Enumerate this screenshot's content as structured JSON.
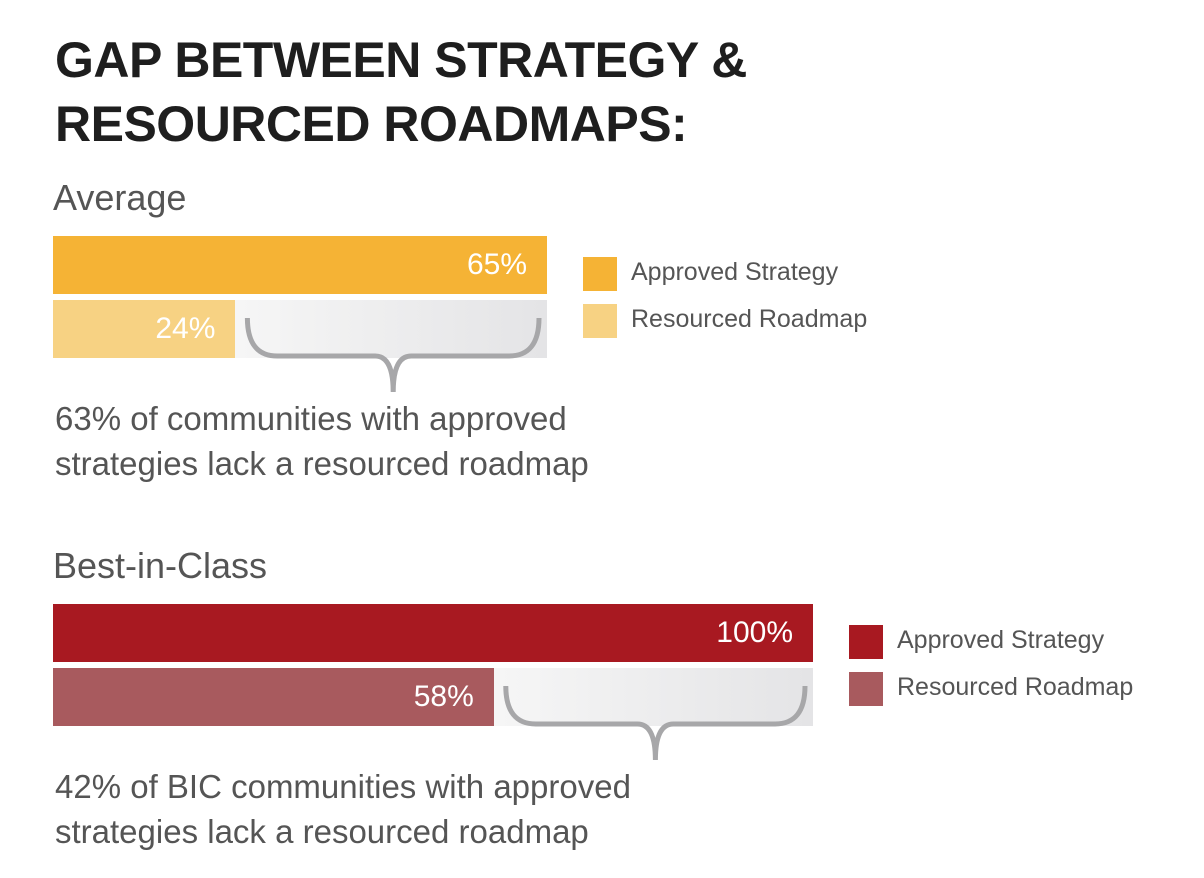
{
  "title": "GAP BETWEEN STRATEGY & RESOURCED ROADMAPS:",
  "chart_data": [
    {
      "type": "bar",
      "subtitle": "Average",
      "categories": [
        "Approved Strategy",
        "Resourced Roadmap"
      ],
      "values": [
        65,
        24
      ],
      "value_labels": [
        "65%",
        "24%"
      ],
      "colors": [
        "#f5b335",
        "#f7d283"
      ],
      "xlim": [
        0,
        100
      ],
      "annotation": "63% of communities with approved strategies lack a resourced roadmap"
    },
    {
      "type": "bar",
      "subtitle": "Best-in-Class",
      "categories": [
        "Approved Strategy",
        "Resourced Roadmap"
      ],
      "values": [
        100,
        58
      ],
      "value_labels": [
        "100%",
        "58%"
      ],
      "colors": [
        "#a81921",
        "#a85a5e"
      ],
      "xlim": [
        0,
        100
      ],
      "annotation": "42% of BIC communities with approved strategies lack a resourced roadmap"
    }
  ]
}
